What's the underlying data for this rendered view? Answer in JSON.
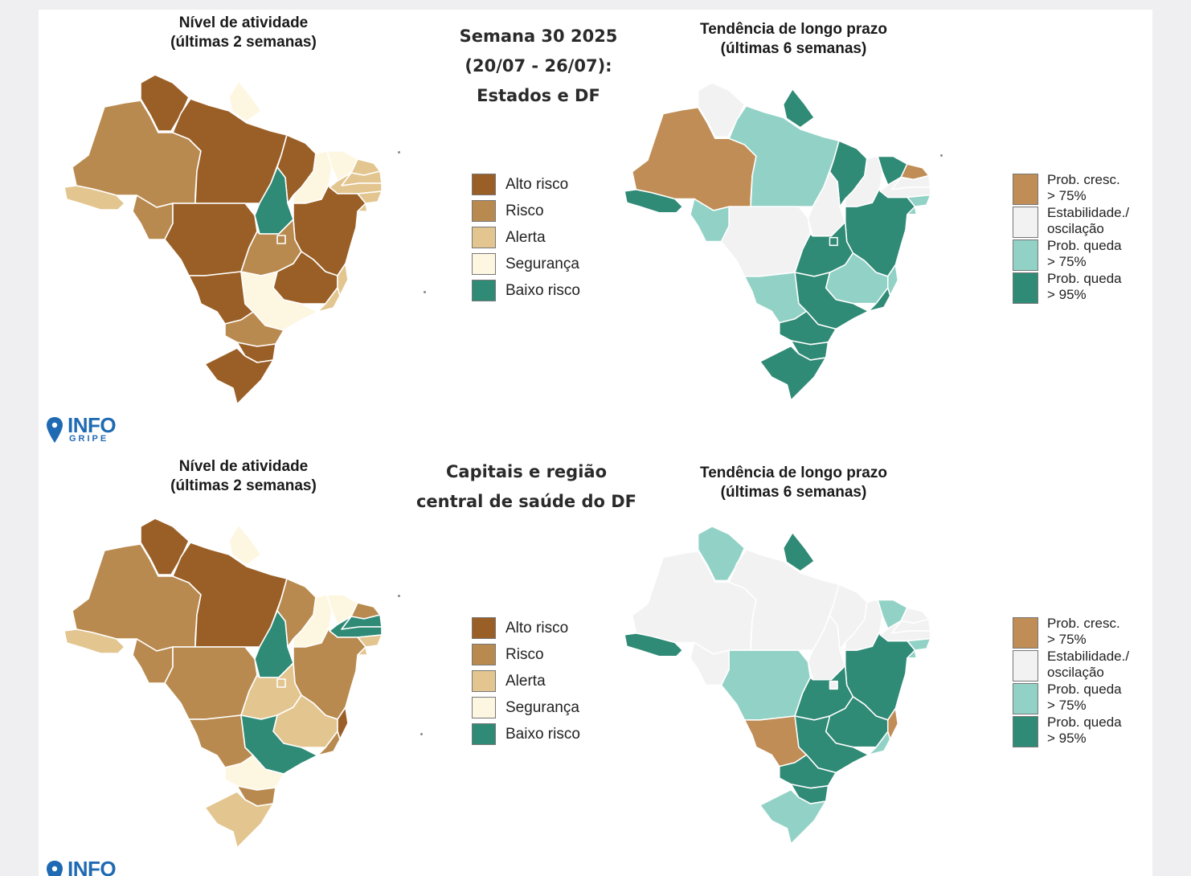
{
  "colors": {
    "level": {
      "alto_risco": "#9a5f26",
      "risco": "#b98a4f",
      "alerta": "#e3c58f",
      "seguranca": "#fdf6e0",
      "baixo_risco": "#2f8a76"
    },
    "trend": {
      "prob_cresc": "#bf8d55",
      "estabilidade": "#f2f2f3",
      "prob_queda_75": "#92d2c6",
      "prob_queda_95": "#2f8a76"
    },
    "logo": "#1f6ab3"
  },
  "panels": {
    "states": {
      "center_title": [
        "Semana 30 2025",
        "(20/07 - 26/07):",
        "Estados e DF"
      ],
      "level_title": [
        "Nível de atividade",
        "(últimas 2 semanas)"
      ],
      "trend_title": [
        "Tendência de longo prazo",
        "(últimas 6 semanas)"
      ],
      "level_by_state": {
        "AC": "alerta",
        "AM": "risco",
        "RR": "alto_risco",
        "AP": "seguranca",
        "PA": "alto_risco",
        "RO": "risco",
        "MT": "alto_risco",
        "TO": "baixo_risco",
        "MA": "alto_risco",
        "PI": "seguranca",
        "CE": "seguranca",
        "RN": "alerta",
        "PB": "alerta",
        "PE": "alerta",
        "AL": "alerta",
        "SE": "alerta",
        "BA": "alto_risco",
        "GO": "risco",
        "DF": "risco",
        "MG": "alto_risco",
        "ES": "alerta",
        "RJ": "alerta",
        "SP": "seguranca",
        "MS": "alto_risco",
        "PR": "risco",
        "SC": "alto_risco",
        "RS": "alto_risco"
      },
      "trend_by_state": {
        "AC": "prob_queda_95",
        "AM": "prob_cresc",
        "RR": "estabilidade",
        "AP": "prob_queda_95",
        "PA": "prob_queda_75",
        "RO": "prob_queda_75",
        "MT": "estabilidade",
        "TO": "estabilidade",
        "MA": "prob_queda_95",
        "PI": "estabilidade",
        "CE": "prob_queda_95",
        "RN": "prob_cresc",
        "PB": "estabilidade",
        "PE": "estabilidade",
        "AL": "prob_queda_75",
        "SE": "prob_queda_75",
        "BA": "prob_queda_95",
        "GO": "prob_queda_95",
        "DF": "prob_queda_95",
        "MG": "prob_queda_75",
        "ES": "prob_queda_75",
        "RJ": "prob_queda_95",
        "SP": "prob_queda_95",
        "MS": "prob_queda_75",
        "PR": "prob_queda_95",
        "SC": "prob_queda_95",
        "RS": "prob_queda_95"
      }
    },
    "capitals": {
      "center_title": [
        "Capitais e região",
        "central de saúde do DF"
      ],
      "level_title": [
        "Nível de atividade",
        "(últimas 2 semanas)"
      ],
      "trend_title": [
        "Tendência de longo prazo",
        "(últimas 6 semanas)"
      ],
      "level_by_state": {
        "AC": "alerta",
        "AM": "risco",
        "RR": "alto_risco",
        "AP": "seguranca",
        "PA": "alto_risco",
        "RO": "risco",
        "MT": "risco",
        "TO": "baixo_risco",
        "MA": "risco",
        "PI": "seguranca",
        "CE": "seguranca",
        "RN": "risco",
        "PB": "baixo_risco",
        "PE": "baixo_risco",
        "AL": "alerta",
        "SE": "alerta",
        "BA": "risco",
        "GO": "alerta",
        "DF": "alerta",
        "MG": "alerta",
        "ES": "alto_risco",
        "RJ": "risco",
        "SP": "baixo_risco",
        "MS": "risco",
        "PR": "seguranca",
        "SC": "risco",
        "RS": "alerta"
      },
      "trend_by_state": {
        "AC": "prob_queda_95",
        "AM": "estabilidade",
        "RR": "prob_queda_75",
        "AP": "prob_queda_95",
        "PA": "estabilidade",
        "RO": "estabilidade",
        "MT": "prob_queda_75",
        "TO": "estabilidade",
        "MA": "estabilidade",
        "PI": "estabilidade",
        "CE": "prob_queda_75",
        "RN": "estabilidade",
        "PB": "estabilidade",
        "PE": "estabilidade",
        "AL": "prob_queda_75",
        "SE": "prob_queda_75",
        "BA": "prob_queda_95",
        "GO": "prob_queda_95",
        "DF": "estabilidade",
        "MG": "prob_queda_95",
        "ES": "prob_cresc",
        "RJ": "prob_queda_75",
        "SP": "prob_queda_95",
        "MS": "prob_cresc",
        "PR": "prob_queda_95",
        "SC": "prob_queda_95",
        "RS": "prob_queda_75"
      }
    }
  },
  "level_legend": [
    {
      "key": "alto_risco",
      "label": "Alto risco"
    },
    {
      "key": "risco",
      "label": "Risco"
    },
    {
      "key": "alerta",
      "label": "Alerta"
    },
    {
      "key": "seguranca",
      "label": "Segurança"
    },
    {
      "key": "baixo_risco",
      "label": "Baixo risco"
    }
  ],
  "trend_legend": [
    {
      "key": "prob_cresc",
      "label": "Prob. cresc.\n> 75%"
    },
    {
      "key": "estabilidade",
      "label": "Estabilidade./\noscilação"
    },
    {
      "key": "prob_queda_75",
      "label": "Prob. queda\n> 75%"
    },
    {
      "key": "prob_queda_95",
      "label": "Prob. queda\n> 95%"
    }
  ],
  "logo": {
    "line1": "INFO",
    "line2": "GRIPE"
  }
}
